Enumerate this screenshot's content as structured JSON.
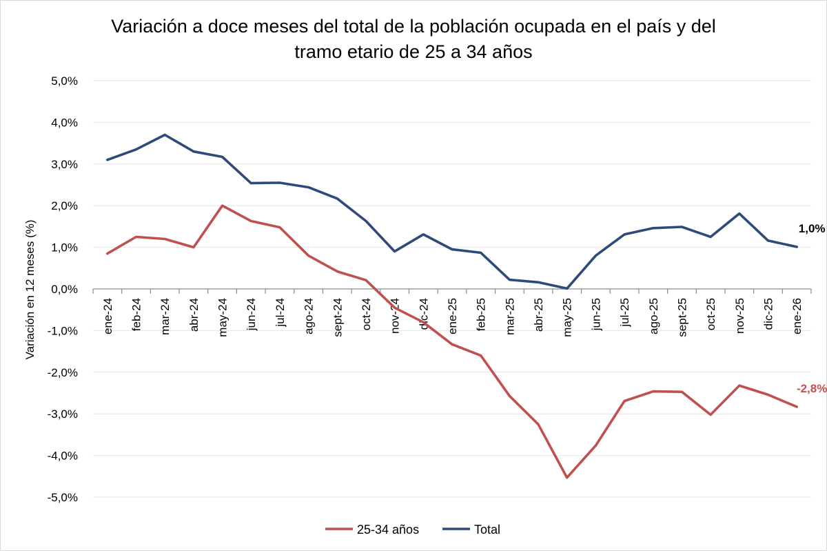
{
  "chart_data": {
    "type": "line",
    "title_line1": "Variación a doce meses del total de la población ocupada en el país y del",
    "title_line2": "tramo etario de 25 a 34 años",
    "xlabel": "",
    "ylabel": "Variación en 12 meses (%)",
    "ylim": [
      -5,
      5
    ],
    "yticks": [
      "5,0%",
      "4,0%",
      "3,0%",
      "2,0%",
      "1,0%",
      "0,0%",
      "-1,0%",
      "-2,0%",
      "-3,0%",
      "-4,0%",
      "-5,0%"
    ],
    "ytick_values": [
      5,
      4,
      3,
      2,
      1,
      0,
      -1,
      -2,
      -3,
      -4,
      -5
    ],
    "categories": [
      "ene-24",
      "feb-24",
      "mar-24",
      "abr-24",
      "may-24",
      "jun-24",
      "jul-24",
      "ago-24",
      "sept-24",
      "oct-24",
      "nov-24",
      "dic-24",
      "ene-25",
      "feb-25",
      "mar-25",
      "abr-25",
      "may-25",
      "jun-25",
      "jul-25",
      "ago-25",
      "sept-25",
      "oct-25",
      "nov-25",
      "dic-25",
      "ene-26"
    ],
    "grid": true,
    "legend_position": "bottom",
    "series": [
      {
        "name": "25-34 años",
        "color": "#c0504d",
        "values": [
          0.85,
          1.25,
          1.2,
          1.0,
          2.0,
          1.63,
          1.48,
          0.8,
          0.42,
          0.21,
          -0.45,
          -0.8,
          -1.33,
          -1.6,
          -2.57,
          -3.25,
          -4.53,
          -3.76,
          -2.69,
          -2.46,
          -2.47,
          -3.02,
          -2.32,
          -2.54,
          -2.83
        ],
        "end_label": "-2,8%"
      },
      {
        "name": "Total",
        "color": "#2e4a78",
        "values": [
          3.1,
          3.35,
          3.7,
          3.3,
          3.17,
          2.54,
          2.55,
          2.44,
          2.17,
          1.63,
          0.9,
          1.31,
          0.95,
          0.87,
          0.22,
          0.16,
          0.01,
          0.8,
          1.31,
          1.46,
          1.49,
          1.25,
          1.81,
          1.16,
          1.01
        ],
        "end_label": "1,0%"
      }
    ]
  }
}
